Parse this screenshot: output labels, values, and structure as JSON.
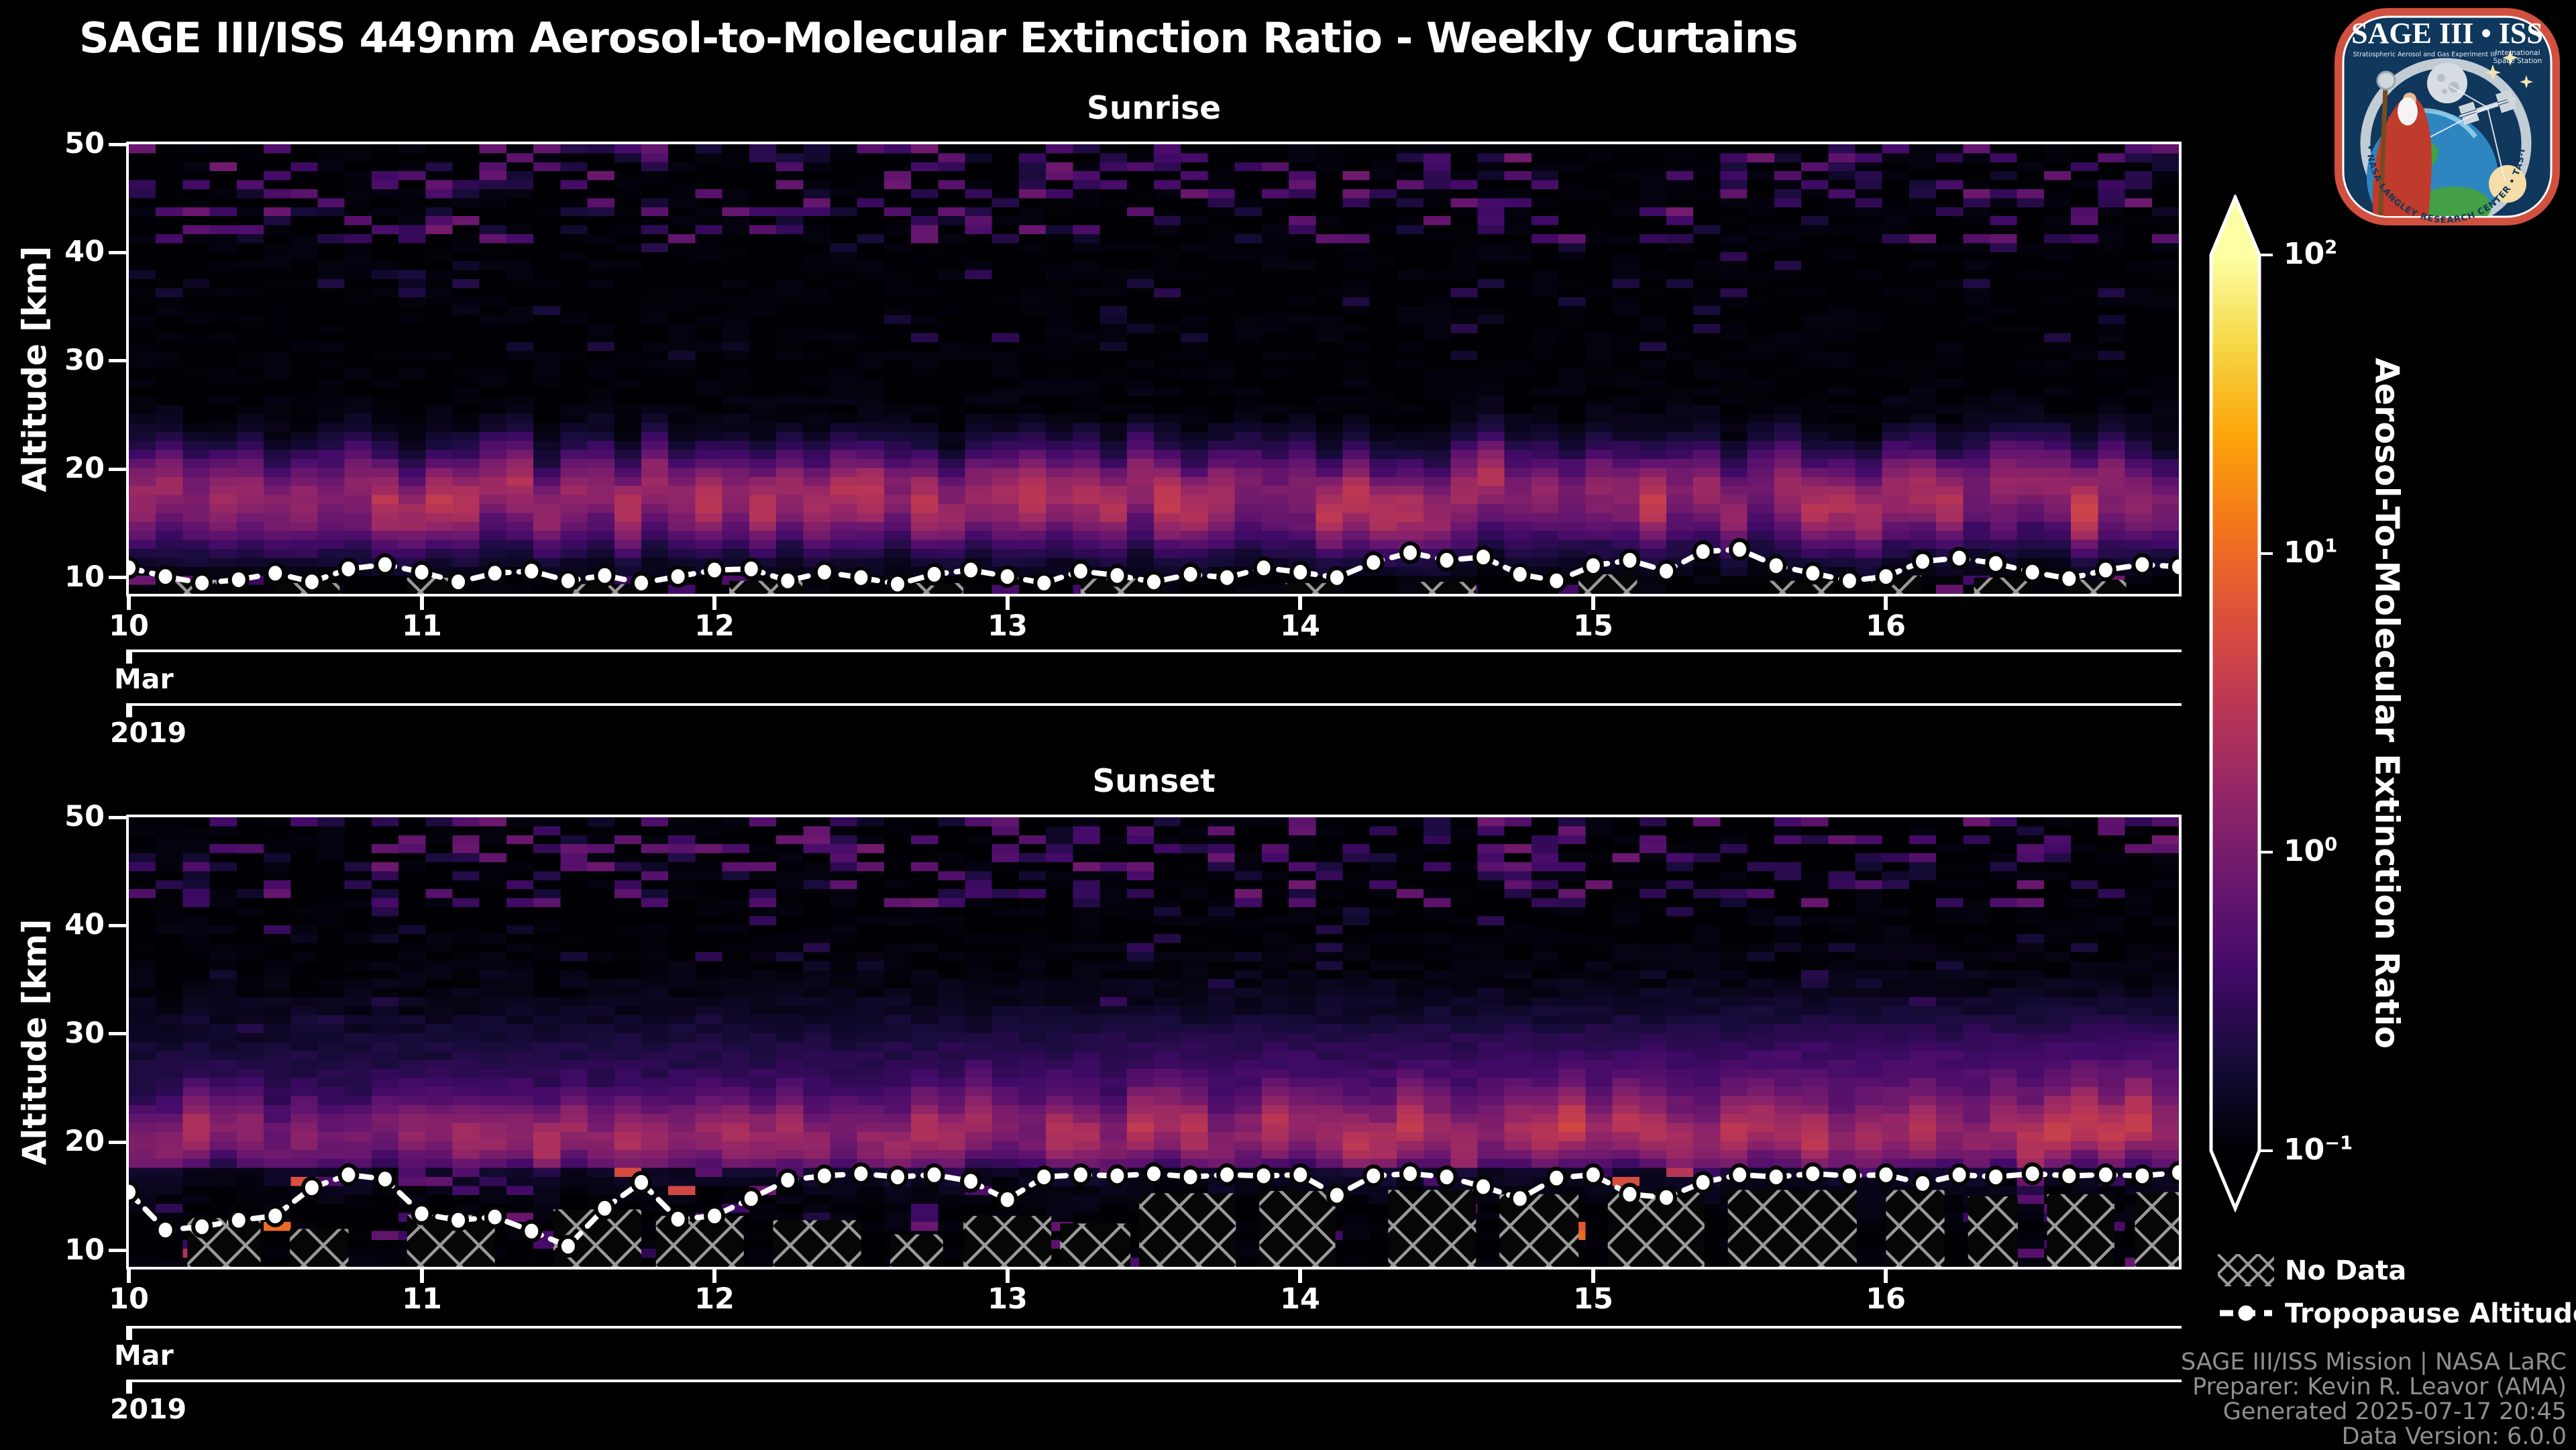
{
  "figure_title": "SAGE III/ISS 449nm Aerosol-to-Molecular Extinction Ratio - Weekly Curtains",
  "axes": {
    "ylabel": "Altitude [km]",
    "yticks": [
      10,
      20,
      30,
      40,
      50
    ],
    "ylim": [
      8.5,
      50
    ],
    "xticks": [
      "10",
      "11",
      "12",
      "13",
      "14",
      "15",
      "16"
    ],
    "month_label": "Mar",
    "year_label": "2019"
  },
  "colorbar": {
    "label": "Aerosol-To-Molecular Extinction Ratio",
    "colormap": "inferno",
    "scale": "log",
    "extend": "both",
    "ticks": [
      {
        "base": "10",
        "exp": "2"
      },
      {
        "base": "10",
        "exp": "1"
      },
      {
        "base": "10",
        "exp": "0"
      },
      {
        "base": "10",
        "exp": "−1"
      }
    ]
  },
  "legend": {
    "no_data_label": "No Data",
    "tropopause_label": "Tropopause Altitude"
  },
  "attribution": [
    "SAGE III/ISS Mission | NASA LaRC",
    "Preparer: Kevin R. Leavor (AMA)",
    "Generated 2025-07-17 20:45",
    "Data Version: 6.0.0"
  ],
  "logo": {
    "title": "SAGE III • ISS",
    "subtitle_left": "Stratospheric Aerosol and Gas Experiment III",
    "subtitle_right_1": "International",
    "subtitle_right_2": "Space Station",
    "ring_text": "BALL • NASA LANGLEY RESEARCH CENTER • TAS-I • ESA"
  },
  "chart_data": [
    {
      "type": "heatmap",
      "panel": "Sunrise",
      "x_axis": {
        "start": "2019-03-10",
        "end": "2019-03-17",
        "tick_days": [
          "10",
          "11",
          "12",
          "13",
          "14",
          "15",
          "16"
        ],
        "month": "Mar",
        "year": "2019"
      },
      "y_axis": {
        "label": "Altitude [km]",
        "lim_km": [
          8.5,
          50
        ],
        "ticks_km": [
          10,
          20,
          30,
          40,
          50
        ]
      },
      "value_axis": {
        "label": "Aerosol-To-Molecular Extinction Ratio",
        "scale": "log10",
        "lim": [
          0.1,
          100
        ],
        "colormap": "inferno"
      },
      "grid_bins": {
        "columns": 76,
        "rows": 50
      },
      "model": {
        "seed": 11,
        "band": {
          "amp": 0.38,
          "center_km": 18.0,
          "sigma_km": 2.9,
          "wobble_km": 1.4
        },
        "sub_band": {
          "amp": 0.17,
          "center_km": 14.3,
          "sigma_km": 2.2
        },
        "upper_speckle": {
          "min_alt_km": 41,
          "density": 0.3
        },
        "mid_speckle": {
          "density": 0.05
        },
        "below_cut_km": 10.2
      },
      "tropopause_x_step_days": 0.125,
      "tropopause_km": [
        10.9,
        10.1,
        9.5,
        9.8,
        10.4,
        9.6,
        10.8,
        11.2,
        10.5,
        9.6,
        10.4,
        10.6,
        9.7,
        10.2,
        9.5,
        10.1,
        10.7,
        10.8,
        9.7,
        10.5,
        10.0,
        9.4,
        10.3,
        10.7,
        10.1,
        9.5,
        10.6,
        10.2,
        9.6,
        10.3,
        10.0,
        10.9,
        10.5,
        10.0,
        11.4,
        12.3,
        11.6,
        11.9,
        10.3,
        9.7,
        11.1,
        11.6,
        10.6,
        12.4,
        12.6,
        11.1,
        10.4,
        9.7,
        10.1,
        11.5,
        11.8,
        11.3,
        10.5,
        9.9,
        10.7,
        11.2,
        11.0
      ],
      "no_data_regions": [
        [
          0.1,
          0.3,
          9.8
        ],
        [
          0.5,
          0.72,
          9.5
        ],
        [
          0.95,
          1.1,
          10.0
        ],
        [
          1.5,
          1.72,
          9.4
        ],
        [
          2.05,
          2.3,
          9.7
        ],
        [
          2.65,
          2.85,
          9.5
        ],
        [
          3.25,
          3.5,
          9.9
        ],
        [
          3.95,
          4.12,
          9.5
        ],
        [
          4.4,
          4.6,
          9.6
        ],
        [
          4.95,
          5.15,
          10.3
        ],
        [
          5.6,
          5.82,
          9.7
        ],
        [
          5.95,
          6.12,
          10.2
        ],
        [
          6.3,
          6.5,
          10.0
        ],
        [
          6.62,
          6.82,
          9.8
        ]
      ]
    },
    {
      "type": "heatmap",
      "panel": "Sunset",
      "x_axis": {
        "start": "2019-03-10",
        "end": "2019-03-17",
        "tick_days": [
          "10",
          "11",
          "12",
          "13",
          "14",
          "15",
          "16"
        ],
        "month": "Mar",
        "year": "2019"
      },
      "y_axis": {
        "label": "Altitude [km]",
        "lim_km": [
          8.5,
          50
        ],
        "ticks_km": [
          10,
          20,
          30,
          40,
          50
        ]
      },
      "value_axis": {
        "label": "Aerosol-To-Molecular Extinction Ratio",
        "scale": "log10",
        "lim": [
          0.1,
          100
        ],
        "colormap": "inferno"
      },
      "grid_bins": {
        "columns": 76,
        "rows": 50
      },
      "model": {
        "seed": 77,
        "band": {
          "amp": 0.34,
          "center_km": 20.4,
          "sigma_km": 2.7,
          "wobble_km": 1.2
        },
        "broad_band": {
          "amp_base": 0.1,
          "amp_slope": 0.13,
          "center_km": 26.0,
          "sigma_km": 4.6
        },
        "upper_speckle": {
          "min_alt_km": 42,
          "density": 0.3
        },
        "mid_speckle": {
          "density": 0.05
        },
        "below_cut_km": 17.3
      },
      "tropopause_x_step_days": 0.125,
      "tropopause_km": [
        15.4,
        11.9,
        12.2,
        12.8,
        13.2,
        15.8,
        17.0,
        16.6,
        13.4,
        12.8,
        13.1,
        11.8,
        10.4,
        13.9,
        16.3,
        12.9,
        13.2,
        14.8,
        16.5,
        16.9,
        17.1,
        16.8,
        17.0,
        16.4,
        14.7,
        16.8,
        17.0,
        16.9,
        17.1,
        16.8,
        17.0,
        16.9,
        17.0,
        15.1,
        16.9,
        17.1,
        16.8,
        15.9,
        14.8,
        16.7,
        17.0,
        15.2,
        14.9,
        16.3,
        17.0,
        16.8,
        17.1,
        16.9,
        17.0,
        16.2,
        17.0,
        16.8,
        17.1,
        16.9,
        17.0,
        16.9,
        17.2
      ],
      "no_data_regions": [
        [
          0.2,
          0.45,
          13.0
        ],
        [
          0.55,
          0.75,
          12.0
        ],
        [
          0.95,
          1.25,
          13.3
        ],
        [
          1.45,
          1.75,
          13.8
        ],
        [
          1.8,
          2.1,
          13.2
        ],
        [
          2.2,
          2.5,
          12.8
        ],
        [
          2.6,
          2.78,
          11.5
        ],
        [
          2.85,
          3.15,
          13.2
        ],
        [
          3.18,
          3.42,
          12.5
        ],
        [
          3.45,
          3.78,
          15.3
        ],
        [
          3.86,
          4.12,
          15.5
        ],
        [
          4.3,
          4.6,
          15.6
        ],
        [
          4.68,
          4.95,
          15.2
        ],
        [
          5.05,
          5.38,
          15.4
        ],
        [
          5.46,
          5.9,
          15.6
        ],
        [
          6.0,
          6.2,
          15.6
        ],
        [
          6.28,
          6.45,
          15.0
        ],
        [
          6.55,
          6.78,
          15.2
        ],
        [
          6.85,
          7.0,
          15.4
        ]
      ]
    }
  ]
}
